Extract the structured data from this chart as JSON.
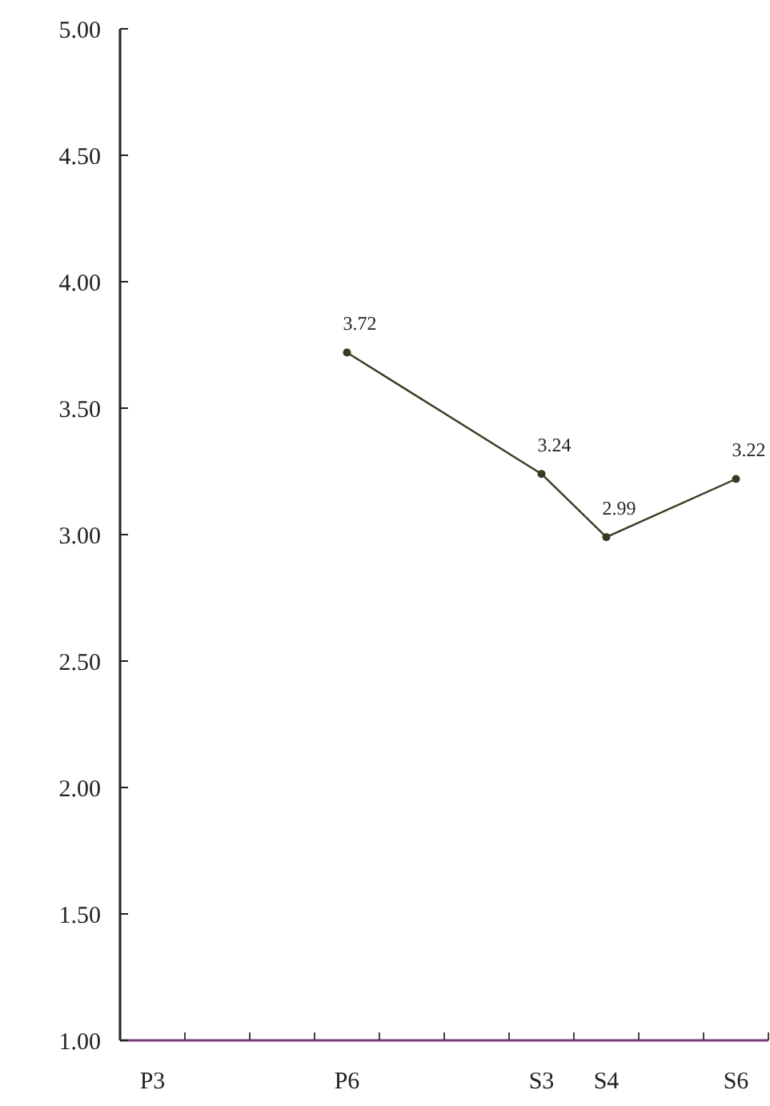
{
  "chart_data": {
    "type": "line",
    "categories": [
      "P3",
      null,
      null,
      "P6",
      null,
      null,
      "S3",
      "S4",
      null,
      "S6"
    ],
    "series": [
      {
        "color": "#3a3a22",
        "values": [
          null,
          null,
          null,
          3.72,
          null,
          null,
          3.24,
          2.99,
          null,
          3.22
        ]
      }
    ],
    "ylim": [
      1,
      5
    ],
    "yticks": [
      {
        "value": 1,
        "label": "1.00"
      },
      {
        "value": 1.5,
        "label": "1.50"
      },
      {
        "value": 2,
        "label": "2.00"
      },
      {
        "value": 2.5,
        "label": "2.50"
      },
      {
        "value": 3,
        "label": "3.00"
      },
      {
        "value": 3.5,
        "label": "3.50"
      },
      {
        "value": 4,
        "label": "4.00"
      },
      {
        "value": 4.5,
        "label": "4.50"
      },
      {
        "value": 5,
        "label": "5.00"
      }
    ],
    "data_labels": true,
    "marker": "circle",
    "line_style": "solid"
  }
}
